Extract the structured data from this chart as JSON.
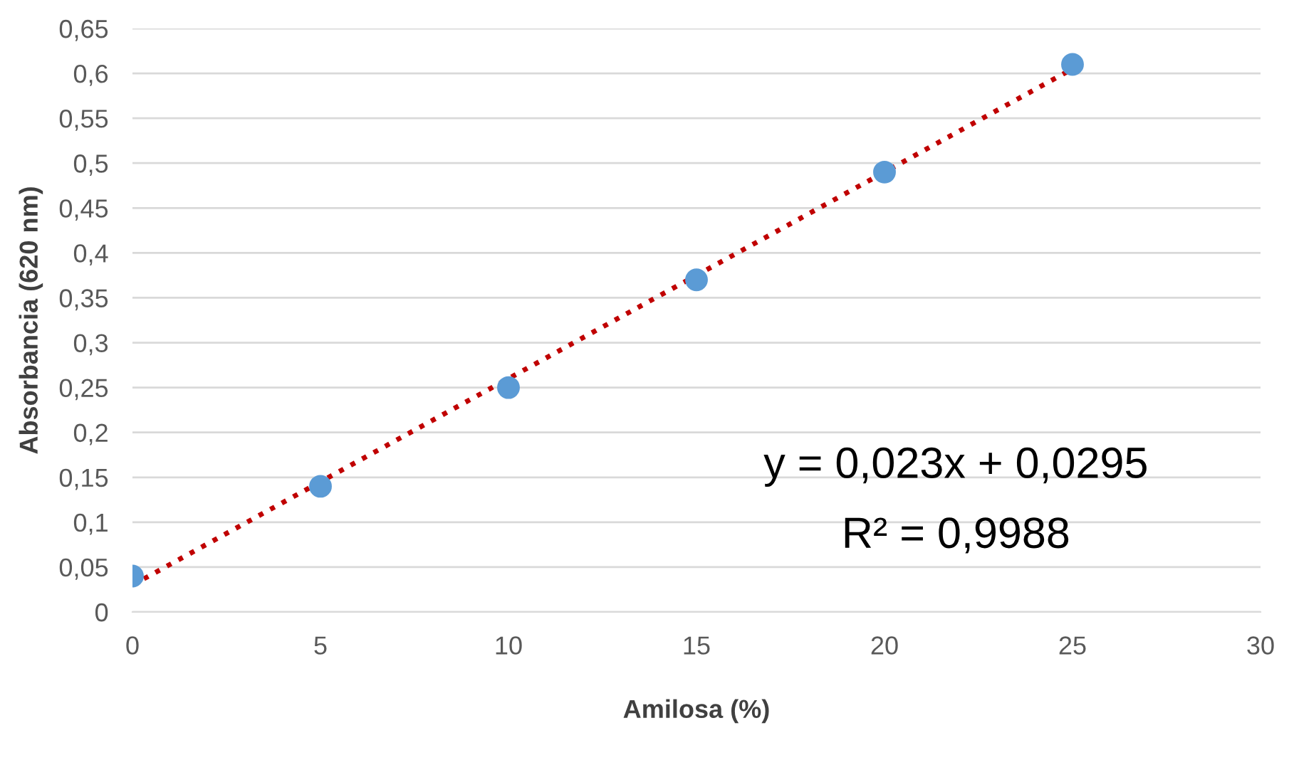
{
  "chart_data": {
    "type": "scatter",
    "xlabel": "Amilosa (%)",
    "ylabel": "Absorbancia (620 nm)",
    "series": [
      {
        "color": "#5b9bd5",
        "marker": "circle",
        "x": [
          0,
          5,
          10,
          15,
          20,
          25
        ],
        "values": [
          0.04,
          0.14,
          0.25,
          0.37,
          0.49,
          0.61
        ]
      },
      {
        "type": "line",
        "color": "#c00000",
        "line_style": "dotted",
        "marker": "none",
        "x": [
          0,
          25
        ],
        "values": [
          0.03,
          0.605
        ]
      }
    ],
    "xlim": [
      0,
      30
    ],
    "xticks": [
      0,
      5,
      10,
      15,
      20,
      25,
      30
    ],
    "ylim": [
      0,
      0.65
    ],
    "yticks": [
      0,
      {
        "value": 0.05,
        "label": "0,05"
      },
      {
        "value": 0.1,
        "label": "0,1"
      },
      {
        "value": 0.15,
        "label": "0,15"
      },
      {
        "value": 0.2,
        "label": "0,2"
      },
      {
        "value": 0.25,
        "label": "0,25"
      },
      {
        "value": 0.3,
        "label": "0,3"
      },
      {
        "value": 0.35,
        "label": "0,35"
      },
      {
        "value": 0.4,
        "label": "0,4"
      },
      {
        "value": 0.45,
        "label": "0,45"
      },
      {
        "value": 0.5,
        "label": "0,5"
      },
      {
        "value": 0.55,
        "label": "0,55"
      },
      {
        "value": 0.6,
        "label": "0,6"
      },
      {
        "value": 0.65,
        "label": "0,65"
      }
    ],
    "grid": "y",
    "annotations": [
      "y = 0,023x + 0,0295",
      "R² = 0,9988"
    ]
  }
}
